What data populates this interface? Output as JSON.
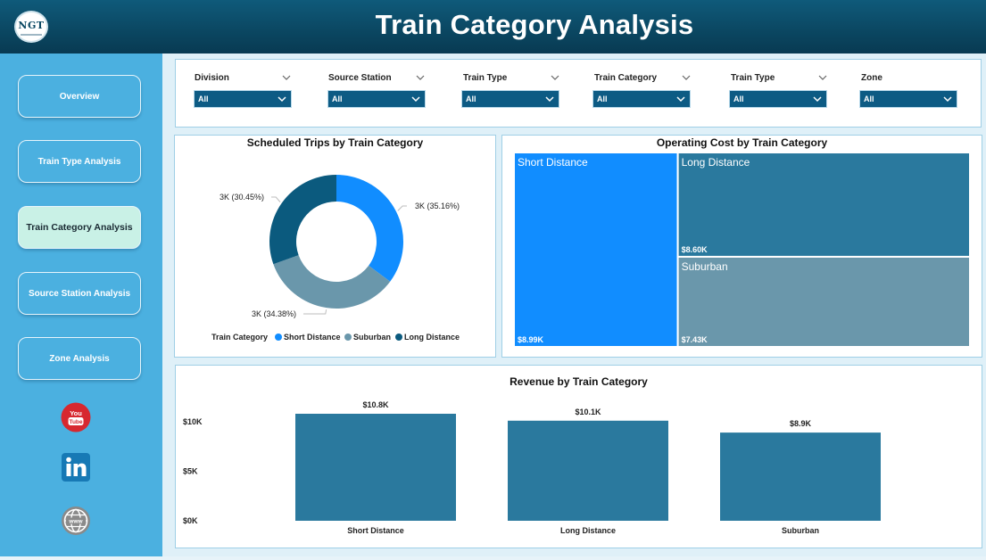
{
  "header": {
    "title": "Train Category Analysis",
    "logo_text": "NGT"
  },
  "sidebar": {
    "items": [
      {
        "label": "Overview",
        "active": false
      },
      {
        "label": "Train Type Analysis",
        "active": false
      },
      {
        "label": "Train Category Analysis",
        "active": true
      },
      {
        "label": "Source Station Analysis",
        "active": false
      },
      {
        "label": "Zone Analysis",
        "active": false
      }
    ],
    "social": [
      {
        "icon": "youtube-icon",
        "text": "You Tube"
      },
      {
        "icon": "linkedin-icon",
        "text": "in"
      },
      {
        "icon": "globe-icon",
        "text": "www"
      }
    ]
  },
  "filters": [
    {
      "label": "Division",
      "value": "All"
    },
    {
      "label": "Source Station",
      "value": "All"
    },
    {
      "label": "Train Type",
      "value": "All"
    },
    {
      "label": "Train Category",
      "value": "All"
    },
    {
      "label": "Train Type",
      "value": "All"
    },
    {
      "label": "Zone",
      "value": "All"
    }
  ],
  "colors": {
    "short_distance": "#118dff",
    "suburban": "#6a97ab",
    "long_distance": "#0b5a7e",
    "bar": "#2a799e",
    "header": "#0b4863",
    "sidebar": "#4bb0e0",
    "active_button": "#c9f1e6"
  },
  "chart_data": [
    {
      "type": "pie",
      "title": "Scheduled Trips by Train Category",
      "legend_title": "Train Category",
      "legend_position": "bottom",
      "categories": [
        "Short Distance",
        "Suburban",
        "Long Distance"
      ],
      "values": [
        35.16,
        34.38,
        30.45
      ],
      "data_labels": [
        "3K (35.16%)",
        "3K (34.38%)",
        "3K (30.45%)"
      ],
      "colors": [
        "#118dff",
        "#6a97ab",
        "#0b5a7e"
      ]
    },
    {
      "type": "treemap",
      "title": "Operating Cost by Train Category",
      "categories": [
        "Short Distance",
        "Long Distance",
        "Suburban"
      ],
      "values": [
        8990,
        8600,
        7430
      ],
      "data_labels": [
        "$8.99K",
        "$8.60K",
        "$7.43K"
      ],
      "colors": [
        "#118dff",
        "#2a799e",
        "#6a97ab"
      ]
    },
    {
      "type": "bar",
      "title": "Revenue by Train Category",
      "categories": [
        "Short Distance",
        "Long Distance",
        "Suburban"
      ],
      "values": [
        10800,
        10100,
        8900
      ],
      "data_labels": [
        "$10.8K",
        "$10.1K",
        "$8.9K"
      ],
      "ylim": [
        0,
        10800
      ],
      "yticks": [
        0,
        5000,
        10000
      ],
      "ytick_labels": [
        "$0K",
        "$5K",
        "$10K"
      ],
      "grid": false
    }
  ]
}
